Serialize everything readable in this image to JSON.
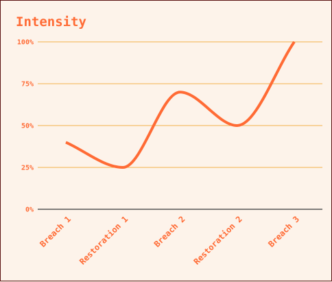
{
  "chart_data": {
    "type": "line",
    "title": "Intensity",
    "categories": [
      "Breach 1",
      "Restoration 1",
      "Breach 2",
      "Restoration 2",
      "Breach 3"
    ],
    "series": [
      {
        "values": [
          40,
          25,
          70,
          50,
          100
        ]
      }
    ],
    "y_tick_labels": [
      "0%",
      "25%",
      "50%",
      "75%",
      "100%"
    ],
    "ylim": [
      0,
      100
    ],
    "grid": true,
    "colors": {
      "line": "#ff6b35",
      "grid": "#f2b24a",
      "axis": "#555555",
      "text": "#ff6b35",
      "background": "#fdf3ea"
    }
  }
}
